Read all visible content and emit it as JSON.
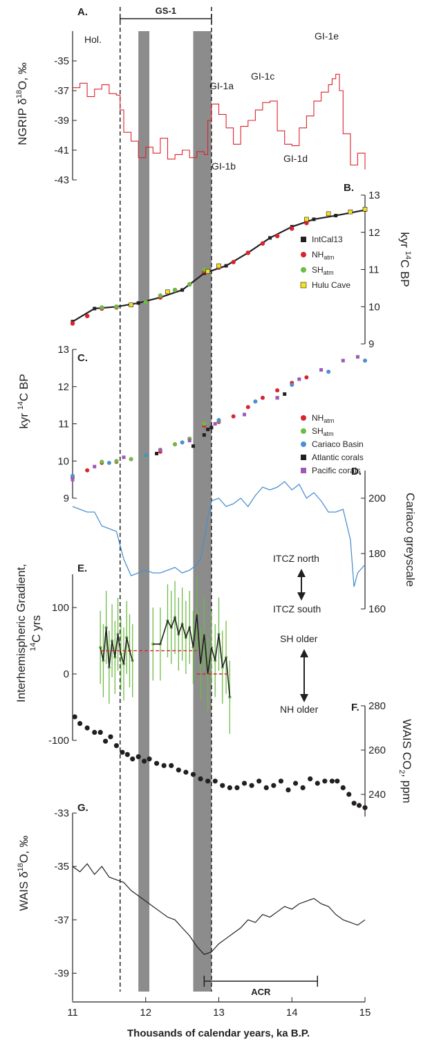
{
  "chart_data": {
    "type": "line",
    "title": "",
    "xlabel": "Thousands of calendar years, ka B.P.",
    "xlim": [
      11,
      15
    ],
    "x_ticks": [
      "11",
      "12",
      "13",
      "14",
      "15"
    ],
    "events": {
      "gs1_label": "GS-1",
      "gs1_range": [
        11.65,
        12.9
      ],
      "acr_label": "ACR",
      "acr_range": [
        12.8,
        14.35
      ],
      "shaded_bands": [
        [
          11.9,
          12.05
        ],
        [
          12.65,
          12.9
        ]
      ]
    },
    "panels": [
      {
        "letter": "A.",
        "type": "line",
        "ylabel": "NGRIP δ18O, ‰",
        "ylim": [
          -43,
          -33
        ],
        "y_ticks": [
          "-35",
          "-37",
          "-39",
          "-41",
          "-43"
        ],
        "color": "#d9232d",
        "annotations": [
          "Hol.",
          "GI-1a",
          "GI-1b",
          "GI-1c",
          "GI-1d",
          "GI-1e"
        ],
        "series": [
          {
            "x": [
              11.0,
              11.1,
              11.2,
              11.3,
              11.4,
              11.5,
              11.6,
              11.65,
              11.7,
              11.8,
              11.9,
              12.0,
              12.1,
              12.2,
              12.3,
              12.4,
              12.5,
              12.6,
              12.7,
              12.8,
              12.85,
              12.9,
              13.0,
              13.1,
              13.2,
              13.3,
              13.4,
              13.5,
              13.6,
              13.7,
              13.8,
              13.9,
              14.0,
              14.1,
              14.2,
              14.3,
              14.4,
              14.5,
              14.55,
              14.6,
              14.65,
              14.7,
              14.8,
              14.9,
              15.0
            ],
            "values": [
              -36.8,
              -36.5,
              -37.4,
              -36.9,
              -36.6,
              -37.2,
              -37.3,
              -38.3,
              -39.8,
              -40.4,
              -41.5,
              -40.8,
              -41.2,
              -40.2,
              -41.6,
              -41.3,
              -41.0,
              -41.5,
              -41.1,
              -41.3,
              -39.0,
              -37.9,
              -38.6,
              -39.5,
              -40.6,
              -39.4,
              -39.0,
              -38.3,
              -37.8,
              -37.7,
              -39.7,
              -40.6,
              -40.7,
              -39.5,
              -38.7,
              -37.7,
              -37.1,
              -36.6,
              -36.2,
              -35.9,
              -37.0,
              -39.9,
              -42.0,
              -41.2,
              -42.3
            ]
          }
        ]
      },
      {
        "letter": "B.",
        "type": "scatter",
        "ylabel": "kyr 14C BP",
        "ylim": [
          9,
          13
        ],
        "y_ticks": [
          "9",
          "10",
          "11",
          "12",
          "13"
        ],
        "legend_position": "right",
        "series": [
          {
            "name": "IntCal13",
            "color": "#231f20",
            "x": [
              11.0,
              11.3,
              11.6,
              11.9,
              12.2,
              12.5,
              12.8,
              13.1,
              13.4,
              13.7,
              14.0,
              14.3,
              14.6,
              15.0
            ],
            "values": [
              9.6,
              9.95,
              10.0,
              10.1,
              10.25,
              10.45,
              10.9,
              11.1,
              11.45,
              11.85,
              12.15,
              12.35,
              12.45,
              12.6
            ]
          },
          {
            "name": "NHatm",
            "color": "#d9232d",
            "x": [
              11.0,
              11.2,
              11.4,
              11.6,
              11.8,
              12.0,
              12.2,
              12.4,
              12.6,
              12.8,
              13.0,
              13.2,
              13.4,
              13.6,
              13.8,
              14.0,
              14.2
            ],
            "values": [
              9.55,
              9.75,
              9.95,
              9.98,
              10.05,
              10.12,
              10.25,
              10.45,
              10.6,
              10.95,
              11.05,
              11.2,
              11.45,
              11.7,
              11.9,
              12.1,
              12.25
            ]
          },
          {
            "name": "SHatm",
            "color": "#6dbb45",
            "x": [
              11.4,
              11.6,
              11.8,
              12.0,
              12.2,
              12.4,
              12.6,
              12.8,
              13.0
            ],
            "values": [
              9.98,
              10.0,
              10.05,
              10.12,
              10.3,
              10.45,
              10.6,
              11.0,
              11.08
            ]
          },
          {
            "name": "Hulu Cave",
            "color": "#f4e01f",
            "x": [
              11.8,
              12.3,
              12.85,
              13.0,
              14.2,
              14.5,
              14.8,
              15.0
            ],
            "values": [
              10.05,
              10.4,
              10.95,
              11.1,
              12.35,
              12.5,
              12.55,
              12.62
            ]
          }
        ]
      },
      {
        "letter": "C.",
        "type": "scatter",
        "ylabel": "kyr 14C BP",
        "ylim": [
          9,
          13
        ],
        "y_ticks": [
          "9",
          "10",
          "11",
          "12",
          "13"
        ],
        "legend_position": "right",
        "series": [
          {
            "name": "NHatm",
            "color": "#d9232d",
            "x": [
              11.0,
              11.2,
              11.4,
              11.6,
              11.8,
              12.0,
              12.2,
              12.4,
              12.6,
              12.8,
              13.0,
              13.2,
              13.4,
              13.6,
              13.8,
              14.0,
              14.2
            ],
            "values": [
              9.55,
              9.75,
              9.95,
              9.98,
              10.05,
              10.12,
              10.25,
              10.45,
              10.6,
              10.95,
              11.05,
              11.2,
              11.45,
              11.7,
              11.9,
              12.1,
              12.25
            ]
          },
          {
            "name": "SHatm",
            "color": "#6dbb45",
            "x": [
              11.4,
              11.6,
              11.8,
              12.0,
              12.2,
              12.4,
              12.6,
              12.8,
              13.0
            ],
            "values": [
              9.98,
              10.0,
              10.05,
              10.12,
              10.3,
              10.45,
              10.6,
              11.0,
              11.08
            ]
          },
          {
            "name": "Cariaco Basin",
            "color": "#4c8fcf",
            "x": [
              11.0,
              11.5,
              12.0,
              12.5,
              13.0,
              13.5,
              14.0,
              14.5,
              15.0
            ],
            "values": [
              9.6,
              9.95,
              10.15,
              10.5,
              11.1,
              11.6,
              12.05,
              12.4,
              12.7
            ]
          },
          {
            "name": "Atlantic corals",
            "color": "#231f20",
            "x": [
              12.15,
              12.65,
              12.8,
              12.85,
              12.9,
              13.8,
              13.9
            ],
            "values": [
              10.2,
              10.4,
              10.7,
              10.85,
              10.9,
              11.7,
              11.8
            ]
          },
          {
            "name": "Pacific corals",
            "color": "#9b59b6",
            "x": [
              11.0,
              11.3,
              11.7,
              12.2,
              12.6,
              12.95,
              13.35,
              13.8,
              14.1,
              14.4,
              14.7,
              14.9
            ],
            "values": [
              9.5,
              9.85,
              10.1,
              10.3,
              10.55,
              11.0,
              11.25,
              11.7,
              12.2,
              12.45,
              12.7,
              12.8
            ]
          }
        ]
      },
      {
        "letter": "D.",
        "type": "line",
        "ylabel": "Cariaco greyscale",
        "ylim": [
          160,
          210
        ],
        "y_ticks": [
          "160",
          "180",
          "200"
        ],
        "color": "#4c8fcf",
        "annotations": [
          "ITCZ north",
          "ITCZ south"
        ],
        "series": [
          {
            "x": [
              11.0,
              11.1,
              11.2,
              11.3,
              11.4,
              11.5,
              11.6,
              11.7,
              11.8,
              11.9,
              12.0,
              12.1,
              12.2,
              12.3,
              12.4,
              12.5,
              12.6,
              12.7,
              12.75,
              12.8,
              12.85,
              12.9,
              13.0,
              13.1,
              13.2,
              13.3,
              13.4,
              13.5,
              13.6,
              13.7,
              13.8,
              13.9,
              14.0,
              14.1,
              14.2,
              14.3,
              14.4,
              14.5,
              14.6,
              14.7,
              14.8,
              14.85,
              14.9,
              15.0
            ],
            "values": [
              197,
              196,
              195,
              195,
              190,
              189,
              188,
              178,
              172,
              173,
              174,
              173,
              173,
              174,
              175,
              173,
              174,
              176,
              178,
              185,
              193,
              199,
              200,
              197,
              198,
              200,
              197,
              201,
              204,
              203,
              204,
              206,
              203,
              205,
              200,
              202,
              199,
              195,
              195,
              196,
              185,
              168,
              173,
              176
            ]
          }
        ]
      },
      {
        "letter": "E.",
        "type": "line",
        "ylabel": "Interhemispheric Gradient, 14C yrs",
        "ylim": [
          -100,
          150
        ],
        "y_ticks": [
          "100",
          "0",
          "-100"
        ],
        "color": "#231f20",
        "error_color": "#6dbb45",
        "mean_color": "#d9232d",
        "annotations": [
          "SH older",
          "NH older"
        ],
        "series": [
          {
            "name": "",
            "x": [
              11.38,
              11.42,
              11.46,
              11.5,
              11.54,
              11.58,
              11.62,
              11.66,
              11.7,
              11.74,
              11.78,
              11.82
            ],
            "values": [
              40,
              20,
              70,
              10,
              50,
              25,
              60,
              30,
              15,
              55,
              35,
              20
            ]
          },
          {
            "name": "",
            "x": [
              12.1,
              12.2,
              12.3,
              12.35,
              12.4,
              12.45,
              12.5,
              12.55,
              12.6,
              12.65,
              12.7,
              12.75,
              12.8,
              12.85,
              12.9,
              12.95,
              13.0,
              13.05,
              13.1,
              13.15
            ],
            "values": [
              45,
              45,
              80,
              70,
              85,
              60,
              75,
              55,
              70,
              40,
              90,
              15,
              60,
              0,
              40,
              20,
              60,
              10,
              25,
              -35
            ]
          }
        ],
        "means": [
          {
            "x": [
              11.38,
              12.7
            ],
            "value": 35
          },
          {
            "x": [
              12.7,
              13.15
            ],
            "value": 0
          }
        ]
      },
      {
        "letter": "F.",
        "type": "scatter",
        "ylabel": "WAIS CO2, ppm",
        "ylim": [
          230,
          280
        ],
        "y_ticks": [
          "240",
          "260",
          "280"
        ],
        "color": "#231f20",
        "series": [
          {
            "x": [
              11.03,
              11.1,
              11.2,
              11.3,
              11.38,
              11.45,
              11.52,
              11.6,
              11.68,
              11.75,
              11.82,
              11.9,
              11.98,
              12.05,
              12.15,
              12.25,
              12.35,
              12.45,
              12.55,
              12.65,
              12.75,
              12.85,
              12.95,
              13.05,
              13.15,
              13.25,
              13.35,
              13.45,
              13.55,
              13.65,
              13.75,
              13.85,
              13.95,
              14.05,
              14.15,
              14.25,
              14.35,
              14.45,
              14.55,
              14.62,
              14.7,
              14.78,
              14.85,
              14.92,
              15.0
            ],
            "values": [
              275,
              272,
              270,
              268,
              268,
              264,
              266,
              262,
              259,
              258,
              256,
              257,
              255,
              256,
              254,
              253,
              253,
              251,
              250,
              249,
              247,
              246,
              246,
              244,
              243,
              243,
              245,
              244,
              246,
              243,
              244,
              246,
              242,
              245,
              243,
              247,
              245,
              246,
              246,
              246,
              243,
              240,
              236,
              235,
              234
            ]
          }
        ]
      },
      {
        "letter": "G.",
        "type": "line",
        "ylabel": "WAIS δ18O, ‰",
        "ylim": [
          -40,
          -33
        ],
        "y_ticks": [
          "-33",
          "-35",
          "-37",
          "-39"
        ],
        "color": "#231f20",
        "series": [
          {
            "x": [
              11.0,
              11.1,
              11.2,
              11.3,
              11.4,
              11.5,
              11.6,
              11.7,
              11.8,
              11.9,
              12.0,
              12.1,
              12.2,
              12.3,
              12.4,
              12.5,
              12.6,
              12.7,
              12.8,
              12.9,
              13.0,
              13.1,
              13.2,
              13.3,
              13.4,
              13.5,
              13.6,
              13.7,
              13.8,
              13.9,
              14.0,
              14.1,
              14.2,
              14.3,
              14.4,
              14.5,
              14.6,
              14.7,
              14.8,
              14.9,
              15.0
            ],
            "values": [
              -35.0,
              -35.2,
              -34.9,
              -35.3,
              -35.0,
              -35.4,
              -35.5,
              -35.6,
              -35.9,
              -36.1,
              -36.3,
              -36.5,
              -36.7,
              -36.9,
              -37.0,
              -37.3,
              -37.6,
              -38.0,
              -38.3,
              -38.2,
              -37.9,
              -37.7,
              -37.5,
              -37.3,
              -37.0,
              -37.1,
              -36.8,
              -36.9,
              -36.7,
              -36.5,
              -36.6,
              -36.4,
              -36.3,
              -36.2,
              -36.4,
              -36.5,
              -36.8,
              -37.0,
              -37.1,
              -37.2,
              -37.0
            ]
          }
        ]
      }
    ]
  },
  "labels": {
    "a_ylabel_prefix": "NGRIP δ",
    "a_ylabel_sup": "18",
    "a_ylabel_suffix": "O, ‰",
    "bc_ylabel_prefix": "kyr ",
    "bc_ylabel_sup": "14",
    "bc_ylabel_suffix": "C BP",
    "e_ylabel_line1": "Interhemispheric Gradient,",
    "e_ylabel_sup": "14",
    "e_ylabel_line2": "C yrs",
    "f_ylabel_prefix": "WAIS CO",
    "f_ylabel_sub": "2",
    "f_ylabel_suffix": ", ppm",
    "g_ylabel_prefix": "WAIS δ",
    "g_ylabel_sup": "18",
    "g_ylabel_suffix": "O, ‰",
    "legend_b": [
      {
        "base": "IntCal13",
        "sub": ""
      },
      {
        "base": "NH",
        "sub": "atm"
      },
      {
        "base": "SH",
        "sub": "atm"
      },
      {
        "base": "Hulu Cave",
        "sub": ""
      }
    ],
    "legend_c": [
      {
        "base": "NH",
        "sub": "atm"
      },
      {
        "base": "SH",
        "sub": "atm"
      },
      {
        "base": "Cariaco Basin",
        "sub": ""
      },
      {
        "base": "Atlantic corals",
        "sub": ""
      },
      {
        "base": "Pacific corals",
        "sub": ""
      }
    ]
  }
}
